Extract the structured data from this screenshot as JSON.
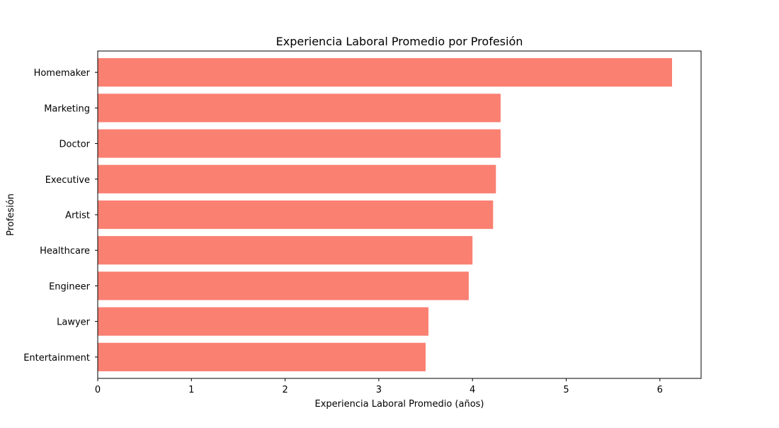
{
  "chart_data": {
    "type": "bar",
    "orientation": "horizontal",
    "title": "Experiencia Laboral Promedio por Profesión",
    "xlabel": "Experiencia Laboral Promedio (años)",
    "ylabel": "Profesión",
    "categories": [
      "Homemaker",
      "Marketing",
      "Doctor",
      "Executive",
      "Artist",
      "Healthcare",
      "Engineer",
      "Lawyer",
      "Entertainment"
    ],
    "values": [
      6.13,
      4.3,
      4.3,
      4.25,
      4.22,
      4.0,
      3.96,
      3.53,
      3.5
    ],
    "xlim": [
      0,
      6.44
    ],
    "xticks": [
      0,
      1,
      2,
      3,
      4,
      5,
      6
    ],
    "grid": false,
    "legend": "none",
    "bar_color": "#fa8072"
  }
}
